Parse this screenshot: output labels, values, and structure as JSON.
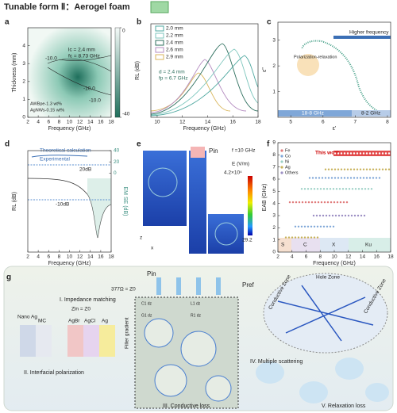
{
  "title": "Tunable form Ⅱ：Aerogel foam",
  "panels": {
    "a": {
      "label": "a",
      "xlabel": "Frequency (GHz)",
      "ylabel": "Thickness (mm)",
      "xlim": [
        2,
        18
      ],
      "xticks": [
        2,
        4,
        6,
        8,
        10,
        12,
        14,
        16,
        18
      ],
      "ylim": [
        0,
        5
      ],
      "yticks": [
        0,
        1,
        2,
        3,
        4
      ],
      "colorbar_ticks": [
        0,
        -40
      ],
      "contour_labels": [
        "-10.0",
        "-10.0",
        "-10.0"
      ],
      "match": [
        "lc = 2.4 mm",
        "fc = 8.73 GHz"
      ],
      "notes": [
        "AWBpe-1.3 wt%",
        "AgNWs-0.15 wt%"
      ]
    },
    "b": {
      "label": "b",
      "xlabel": "Frequency (GHz)",
      "ylabel": "RL (dB)",
      "xlim": [
        9.5,
        18
      ],
      "xticks": [
        10,
        12,
        14,
        16,
        18
      ],
      "legend": [
        {
          "name": "2.0 mm",
          "color": "#4fa8a0"
        },
        {
          "name": "2.2 mm",
          "color": "#7dc6bd"
        },
        {
          "name": "2.4 mm",
          "color": "#2e6f5e"
        },
        {
          "name": "2.6 mm",
          "color": "#b48cc0"
        },
        {
          "name": "2.9 mm",
          "color": "#d9b65c"
        }
      ],
      "annotation": [
        "d = 2.4 mm",
        "fp = 6.7 GHz"
      ]
    },
    "c": {
      "label": "c",
      "xlabel": "ε'",
      "ylabel": "ε''",
      "xlim": [
        4.6,
        8.1
      ],
      "xticks": [
        5,
        6,
        7,
        8
      ],
      "ylim": [
        0,
        3.7
      ],
      "yticks": [
        1,
        2,
        3
      ],
      "arrow": "Higher frequency",
      "circle": "Polarization-relaxation",
      "bands": [
        "18-8 GHz",
        "8-2 GHz"
      ]
    },
    "d": {
      "label": "d",
      "xlabel": "Frequency (GHz)",
      "ylabel": "RL (dB)",
      "y2label": "EM SE (dB)",
      "xlim": [
        2,
        18
      ],
      "xticks": [
        2,
        4,
        6,
        8,
        10,
        12,
        14,
        16,
        18
      ],
      "y2lim": [
        -140,
        40
      ],
      "y2ticks": [
        0,
        20,
        40
      ],
      "notes": [
        "Theoretical calculation",
        "Experimental",
        "20dB",
        "-10dB"
      ]
    },
    "e": {
      "label": "e",
      "source": "Pin",
      "freq": "f =10 GHz",
      "cbar_title": "E (V/m)",
      "cbar_max": "4.2×10⁴",
      "cbar_min": "29.2",
      "axes": [
        "z",
        "x"
      ]
    },
    "f": {
      "label": "f",
      "xlabel": "Frequency (GHz)",
      "ylabel": "EAB (GHz)",
      "xlim": [
        2,
        18
      ],
      "xticks": [
        2,
        4,
        6,
        8,
        10,
        12,
        14,
        16,
        18
      ],
      "ylim": [
        0,
        9
      ],
      "yticks": [
        0,
        1,
        2,
        3,
        4,
        5,
        6,
        7,
        8,
        9
      ],
      "legend": [
        {
          "name": "Fe",
          "color": "#e07b7b"
        },
        {
          "name": "Co",
          "color": "#7fa7d8"
        },
        {
          "name": "Ni",
          "color": "#9bd0c5"
        },
        {
          "name": "Ag",
          "color": "#c8b25b"
        },
        {
          "name": "Others",
          "color": "#9c8fc4"
        }
      ],
      "this_work": "This work",
      "bands": [
        "S",
        "C",
        "X",
        "Ku"
      ]
    },
    "g": {
      "label": "g",
      "pin": "Pin",
      "pref": "Pref",
      "z0": "377Ω = Z0",
      "m1": "I. Impedance matching",
      "zin": "Zin = Z0",
      "materials": [
        "Nano Ag",
        "MC",
        "AgBr",
        "AgCl",
        "Ag"
      ],
      "m2": "II. Interfacial polarization",
      "gradient": "Filler gradient",
      "m3": "III. Conductive loss",
      "m4": "IV. Multiple scattering",
      "m5": "V. Relaxation loss",
      "hole": "Hole Zone",
      "cz": [
        "Conductive Zone",
        "Conductive Zone"
      ],
      "circuit": [
        "C1 dz",
        "L1 dz",
        "G1 dz",
        "R1 dz"
      ]
    }
  }
}
